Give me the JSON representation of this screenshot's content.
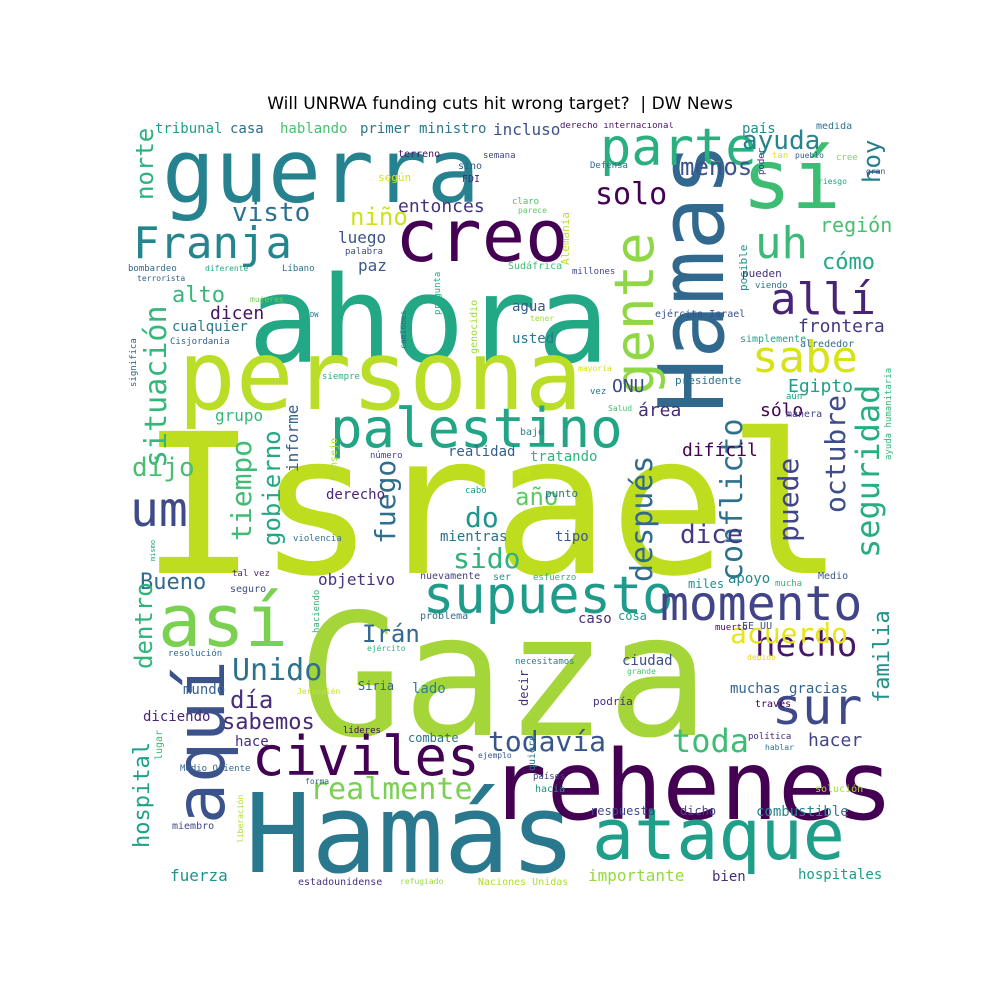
{
  "title": "Will UNRWA funding cuts hit wrong target?  | DW News",
  "words": [
    "Israel",
    "Gaza",
    "Hamás",
    "ahora",
    "persona",
    "rehenes",
    "guerra",
    "Hamas",
    "sí",
    "ataque",
    "así",
    "aquí",
    "creo",
    "palestino",
    "civiles",
    "supuesto",
    "momento",
    "parte",
    "gente",
    "Franja",
    "sabe",
    "sur",
    "um",
    "uh",
    "allí",
    "hecho",
    "acuerdo",
    "Unido",
    "todavía",
    "toda",
    "realmente",
    "conflicto",
    "después",
    "seguridad",
    "puede",
    "octubre",
    "situación",
    "gobierno",
    "tiempo",
    "fuego",
    "dijo",
    "sido",
    "dice",
    "do",
    "año",
    "solo",
    "niño",
    "visto",
    "alto",
    "norte",
    "ayuda",
    "menos",
    "hoy",
    "cómo",
    "región",
    "Bueno",
    "Irán",
    "día",
    "sabemos",
    "dentro",
    "hospital",
    "familia",
    "hacer",
    "frontera",
    "Egipto",
    "ONU",
    "sólo",
    "difícil",
    "área",
    "informe",
    "grupo",
    "entonces",
    "luego",
    "paz",
    "dicen",
    "cualquier",
    "usted",
    "agua",
    "realidad",
    "tratando",
    "derecho",
    "mientras",
    "tipo",
    "objetivo",
    "apoyo",
    "miles",
    "caso",
    "cosa",
    "lado",
    "ciudad",
    "muchas gracias",
    "mundo",
    "diciendo",
    "hace",
    "combate",
    "respuesta",
    "dicho",
    "combustible",
    "hospitales",
    "importante",
    "bien",
    "fuerza",
    "estadounidense",
    "Naciones Unidas",
    "refugiado",
    "hablando",
    "tribunal",
    "casa",
    "primer ministro",
    "incluso",
    "país",
    "medida",
    "derecho internacional",
    "Alemania",
    "Defensa",
    "terreno",
    "sino",
    "FDI",
    "semana",
    "según",
    "claro",
    "parece",
    "pregunta",
    "palabra",
    "camiones",
    "genocidio",
    "Sudáfrica",
    "millones",
    "posible",
    "pueden",
    "viendo",
    "ejército Israel",
    "simplemente",
    "alrededor",
    "presidente",
    "aún",
    "manera",
    "Consejo",
    "siempre",
    "vez",
    "mayoría",
    "Salud",
    "bajo",
    "número",
    "va",
    "cabo",
    "punto",
    "nuevamente",
    "ser",
    "esfuerzo",
    "problema",
    "decir",
    "quiero",
    "necesitamos",
    "ejército",
    "Jerusalén",
    "Siria",
    "podría",
    "grande",
    "muerto",
    "EE UU",
    "debido",
    "través",
    "política",
    "hablar",
    "Medio Oriente",
    "forma",
    "ejemplo",
    "países",
    "hacia",
    "solución",
    "miembro",
    "liberación",
    "líderes",
    "lugar",
    "resolución",
    "seguro",
    "tal vez",
    "haciendo",
    "mucha",
    "Medio",
    "violencia",
    "mismo",
    "significa",
    "Cisjordania",
    "DW",
    "mujeres",
    "terrorista",
    "bombardeo",
    "diferente",
    "Líbano",
    "tener",
    "poder",
    "tan",
    "pueblo",
    "cree",
    "riesgo",
    "gran",
    "ayuda humanitaria"
  ]
}
